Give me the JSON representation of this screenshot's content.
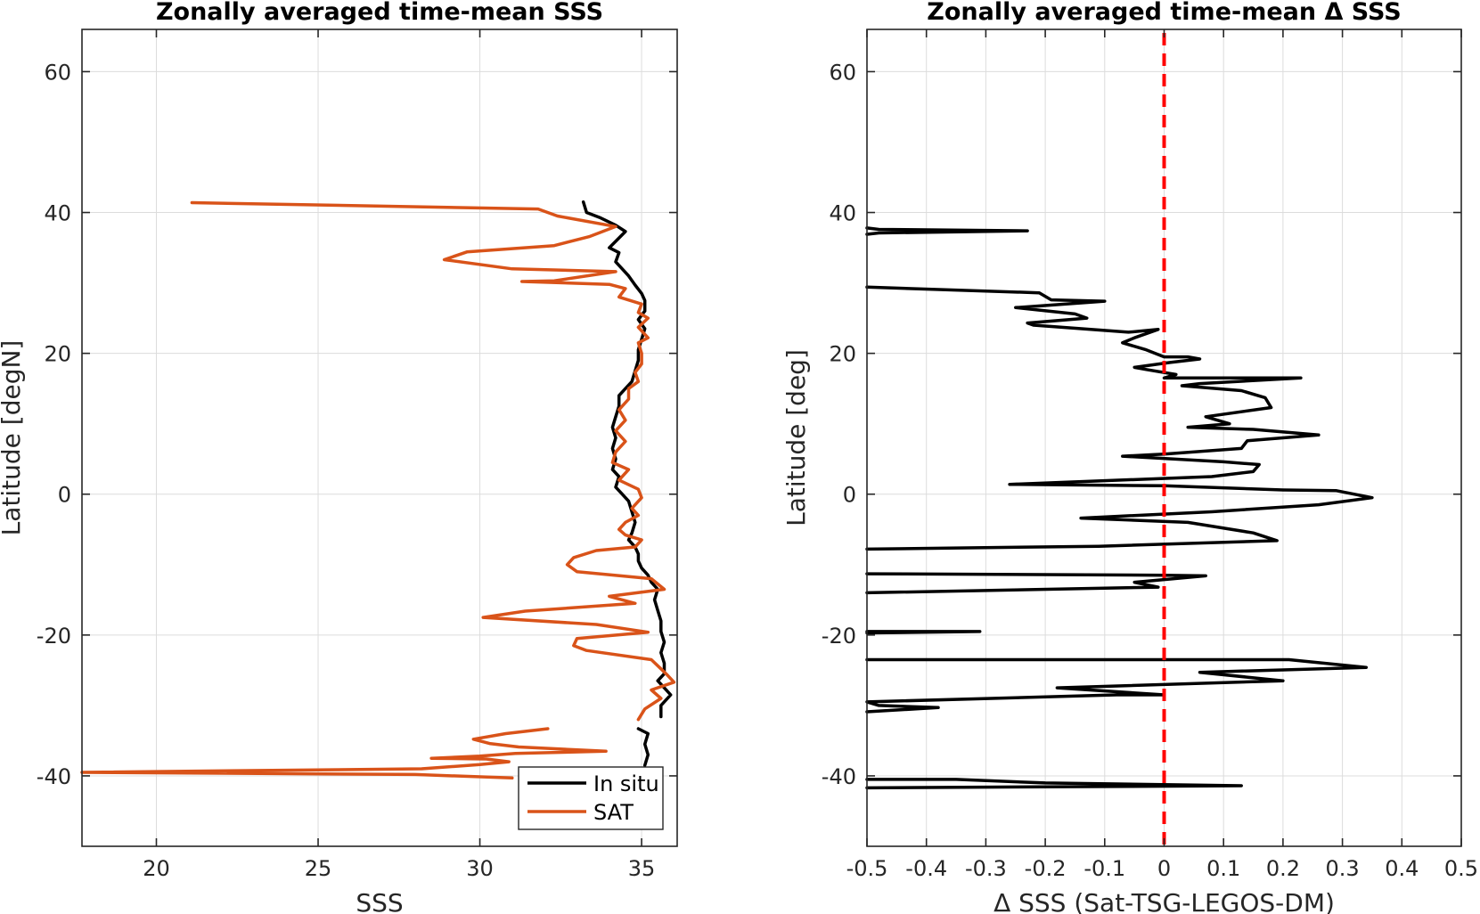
{
  "chart_data": [
    {
      "type": "line",
      "title": "Zonally averaged time-mean SSS",
      "xlabel": "SSS",
      "ylabel": "Latitude [degN]",
      "xlim": [
        17.7,
        36.1
      ],
      "ylim": [
        -50,
        66
      ],
      "xticks": [
        20,
        25,
        30,
        35
      ],
      "yticks": [
        -40,
        -20,
        0,
        20,
        40,
        60
      ],
      "grid": true,
      "legend": {
        "placement": "bottom-right"
      },
      "series": [
        {
          "name": "In situ",
          "color": "#000000",
          "segments": [
            [
              [
                33.2,
                41.5
              ],
              [
                33.3,
                40.0
              ],
              [
                33.7,
                39.3
              ],
              [
                34.2,
                38.2
              ],
              [
                34.5,
                37.3
              ],
              [
                34.2,
                35.9
              ],
              [
                34.0,
                35.0
              ],
              [
                34.3,
                34.3
              ],
              [
                34.2,
                33.0
              ],
              [
                34.4,
                32.0
              ],
              [
                34.6,
                31.0
              ],
              [
                34.8,
                29.7
              ],
              [
                35.0,
                28.5
              ],
              [
                35.1,
                27.5
              ],
              [
                35.1,
                26.0
              ],
              [
                34.9,
                24.8
              ],
              [
                35.1,
                23.5
              ],
              [
                35.0,
                22.0
              ],
              [
                34.9,
                20.5
              ],
              [
                34.9,
                19.0
              ],
              [
                34.8,
                17.5
              ],
              [
                34.7,
                16.0
              ],
              [
                34.5,
                15.0
              ],
              [
                34.3,
                14.0
              ],
              [
                34.3,
                12.5
              ],
              [
                34.2,
                11.0
              ],
              [
                34.1,
                9.5
              ],
              [
                34.2,
                8.0
              ],
              [
                34.1,
                6.5
              ],
              [
                34.2,
                5.0
              ],
              [
                34.1,
                3.5
              ],
              [
                34.3,
                2.5
              ],
              [
                34.2,
                1.0
              ],
              [
                34.4,
                0.0
              ],
              [
                34.6,
                -1.0
              ],
              [
                34.7,
                -2.5
              ],
              [
                34.8,
                -4.0
              ],
              [
                34.7,
                -5.5
              ],
              [
                34.6,
                -6.5
              ],
              [
                34.8,
                -7.5
              ],
              [
                34.9,
                -8.5
              ],
              [
                34.9,
                -9.5
              ],
              [
                35.0,
                -10.5
              ],
              [
                35.2,
                -11.5
              ],
              [
                35.3,
                -12.5
              ],
              [
                35.5,
                -13.5
              ],
              [
                35.4,
                -15.0
              ],
              [
                35.5,
                -16.5
              ],
              [
                35.6,
                -18.0
              ],
              [
                35.6,
                -19.5
              ],
              [
                35.7,
                -21.0
              ],
              [
                35.6,
                -22.5
              ],
              [
                35.7,
                -24.0
              ],
              [
                35.7,
                -25.5
              ],
              [
                35.5,
                -26.5
              ],
              [
                35.7,
                -27.5
              ],
              [
                35.9,
                -28.5
              ],
              [
                35.6,
                -30.0
              ],
              [
                35.6,
                -31.6
              ]
            ],
            [
              [
                34.9,
                -33.3
              ],
              [
                35.2,
                -34.0
              ],
              [
                35.1,
                -35.5
              ],
              [
                35.2,
                -37.0
              ],
              [
                35.1,
                -38.5
              ]
            ]
          ]
        },
        {
          "name": "SAT",
          "color": "#D95319",
          "segments": [
            [
              [
                21.1,
                41.4
              ],
              [
                31.8,
                40.5
              ],
              [
                32.4,
                39.5
              ],
              [
                34.2,
                38.0
              ],
              [
                33.4,
                36.6
              ],
              [
                32.3,
                35.3
              ],
              [
                29.6,
                34.4
              ],
              [
                28.9,
                33.3
              ],
              [
                31.0,
                32.0
              ],
              [
                34.2,
                31.6
              ],
              [
                32.3,
                30.3
              ],
              [
                31.3,
                30.2
              ],
              [
                34.0,
                29.8
              ],
              [
                34.5,
                29.2
              ],
              [
                34.3,
                28.0
              ],
              [
                35.0,
                27.0
              ],
              [
                34.9,
                25.8
              ],
              [
                35.2,
                25.0
              ],
              [
                34.9,
                23.7
              ],
              [
                35.2,
                22.2
              ],
              [
                34.9,
                21.5
              ],
              [
                35.0,
                20.0
              ],
              [
                35.0,
                18.5
              ],
              [
                34.8,
                17.3
              ],
              [
                34.9,
                16.0
              ],
              [
                34.6,
                15.0
              ],
              [
                34.6,
                13.5
              ],
              [
                34.3,
                12.0
              ],
              [
                34.5,
                10.5
              ],
              [
                34.2,
                9.0
              ],
              [
                34.5,
                7.5
              ],
              [
                34.2,
                6.0
              ],
              [
                34.1,
                4.5
              ],
              [
                34.6,
                3.5
              ],
              [
                34.3,
                2.0
              ],
              [
                34.9,
                0.7
              ],
              [
                35.0,
                -0.5
              ],
              [
                34.7,
                -2.0
              ],
              [
                34.9,
                -3.0
              ],
              [
                34.5,
                -4.0
              ],
              [
                34.3,
                -5.0
              ],
              [
                34.5,
                -5.8
              ],
              [
                35.0,
                -6.5
              ],
              [
                34.8,
                -7.5
              ],
              [
                33.6,
                -8.0
              ],
              [
                32.9,
                -9.0
              ],
              [
                32.7,
                -10.0
              ],
              [
                33.0,
                -11.0
              ],
              [
                35.3,
                -12.0
              ],
              [
                35.7,
                -13.5
              ],
              [
                34.0,
                -14.5
              ],
              [
                34.8,
                -15.5
              ],
              [
                31.4,
                -16.6
              ],
              [
                30.1,
                -17.5
              ],
              [
                33.6,
                -18.5
              ],
              [
                35.2,
                -19.6
              ],
              [
                33.0,
                -20.5
              ],
              [
                32.9,
                -21.5
              ],
              [
                33.3,
                -22.2
              ],
              [
                35.3,
                -23.5
              ],
              [
                35.6,
                -24.8
              ],
              [
                35.8,
                -25.7
              ],
              [
                36.0,
                -26.7
              ],
              [
                35.3,
                -27.8
              ],
              [
                35.6,
                -29.0
              ],
              [
                35.1,
                -30.5
              ],
              [
                34.9,
                -32.0
              ]
            ],
            [
              [
                32.1,
                -33.3
              ],
              [
                30.8,
                -34.0
              ],
              [
                29.8,
                -34.8
              ],
              [
                30.3,
                -35.4
              ],
              [
                31.2,
                -35.9
              ],
              [
                33.9,
                -36.5
              ],
              [
                31.1,
                -36.8
              ],
              [
                30.0,
                -37.2
              ],
              [
                28.5,
                -37.5
              ],
              [
                30.2,
                -37.6
              ],
              [
                30.9,
                -38.0
              ],
              [
                30.0,
                -38.4
              ],
              [
                28.2,
                -39.0
              ],
              [
                17.7,
                -39.5
              ],
              [
                28.0,
                -39.8
              ],
              [
                31.0,
                -40.3
              ]
            ]
          ]
        }
      ]
    },
    {
      "type": "line",
      "title": "Zonally averaged time-mean Δ SSS",
      "xlabel": "Δ SSS (Sat-TSG-LEGOS-DM)",
      "ylabel": "Latitude [deg]",
      "xlim": [
        -0.5,
        0.5
      ],
      "ylim": [
        -50,
        66
      ],
      "xticks": [
        -0.5,
        -0.4,
        -0.3,
        -0.2,
        -0.1,
        0,
        0.1,
        0.2,
        0.3,
        0.4,
        0.5
      ],
      "xticklabels": [
        "-0.5",
        "-0.4",
        "-0.3",
        "-0.2",
        "-0.1",
        "0",
        "0.1",
        "0.2",
        "0.3",
        "0.4",
        "0.5"
      ],
      "yticks": [
        -40,
        -20,
        0,
        20,
        40,
        60
      ],
      "grid": true,
      "reference_line": {
        "x": 0,
        "style": "dashed",
        "color": "#FF0000"
      },
      "series": [
        {
          "color": "#000000",
          "segments": [
            [
              [
                -0.5,
                37.8
              ],
              [
                -0.48,
                37.6
              ],
              [
                -0.23,
                37.4
              ],
              [
                -0.48,
                37.1
              ],
              [
                -0.5,
                36.9
              ]
            ],
            [
              [
                -0.5,
                29.4
              ],
              [
                -0.21,
                28.6
              ],
              [
                -0.19,
                27.6
              ],
              [
                -0.1,
                27.4
              ],
              [
                -0.25,
                26.5
              ],
              [
                -0.15,
                25.6
              ],
              [
                -0.13,
                25.0
              ],
              [
                -0.23,
                24.3
              ],
              [
                -0.22,
                24.0
              ],
              [
                -0.06,
                23.0
              ],
              [
                -0.01,
                23.4
              ],
              [
                -0.05,
                22.2
              ],
              [
                -0.07,
                21.5
              ],
              [
                -0.03,
                20.5
              ],
              [
                0.0,
                19.5
              ],
              [
                0.04,
                19.5
              ],
              [
                0.06,
                19.2
              ],
              [
                0.01,
                18.7
              ],
              [
                -0.05,
                18.0
              ],
              [
                -0.03,
                17.7
              ],
              [
                0.02,
                17.0
              ],
              [
                0.0,
                16.5
              ],
              [
                0.1,
                16.5
              ],
              [
                0.23,
                16.5
              ],
              [
                0.06,
                15.7
              ],
              [
                0.03,
                15.4
              ],
              [
                0.13,
                14.7
              ],
              [
                0.17,
                13.7
              ],
              [
                0.18,
                12.3
              ],
              [
                0.07,
                11.0
              ],
              [
                0.11,
                10.0
              ],
              [
                0.04,
                9.5
              ],
              [
                0.15,
                9.2
              ],
              [
                0.26,
                8.4
              ],
              [
                0.14,
                7.6
              ],
              [
                0.13,
                6.5
              ],
              [
                0.0,
                5.7
              ],
              [
                -0.07,
                5.4
              ],
              [
                0.1,
                4.6
              ],
              [
                0.16,
                4.2
              ],
              [
                0.15,
                3.2
              ],
              [
                0.08,
                2.5
              ],
              [
                -0.26,
                1.4
              ],
              [
                0.0,
                1.2
              ],
              [
                0.2,
                0.6
              ],
              [
                0.29,
                0.5
              ],
              [
                0.35,
                -0.5
              ],
              [
                0.26,
                -1.5
              ],
              [
                0.08,
                -2.5
              ],
              [
                -0.14,
                -3.4
              ],
              [
                0.04,
                -4.0
              ],
              [
                0.15,
                -5.5
              ],
              [
                0.19,
                -6.6
              ],
              [
                -0.11,
                -7.4
              ],
              [
                -0.5,
                -7.8
              ]
            ],
            [
              [
                -0.5,
                -11.3
              ],
              [
                0.0,
                -11.5
              ],
              [
                0.07,
                -11.6
              ],
              [
                -0.05,
                -12.5
              ],
              [
                -0.01,
                -13.2
              ],
              [
                -0.5,
                -14.0
              ]
            ],
            [
              [
                -0.5,
                -19.5
              ],
              [
                -0.31,
                -19.5
              ],
              [
                -0.5,
                -19.7
              ]
            ],
            [
              [
                -0.5,
                -23.5
              ],
              [
                0.21,
                -23.5
              ],
              [
                0.34,
                -24.6
              ],
              [
                0.06,
                -25.3
              ],
              [
                0.2,
                -26.5
              ],
              [
                -0.18,
                -27.5
              ],
              [
                0.0,
                -28.5
              ],
              [
                -0.08,
                -28.5
              ],
              [
                -0.5,
                -29.5
              ],
              [
                -0.48,
                -30.0
              ],
              [
                -0.38,
                -30.3
              ],
              [
                -0.5,
                -30.9
              ]
            ],
            [
              [
                -0.5,
                -40.5
              ],
              [
                -0.35,
                -40.5
              ],
              [
                -0.2,
                -41.0
              ],
              [
                0.13,
                -41.4
              ],
              [
                -0.5,
                -41.7
              ]
            ]
          ]
        }
      ]
    }
  ]
}
